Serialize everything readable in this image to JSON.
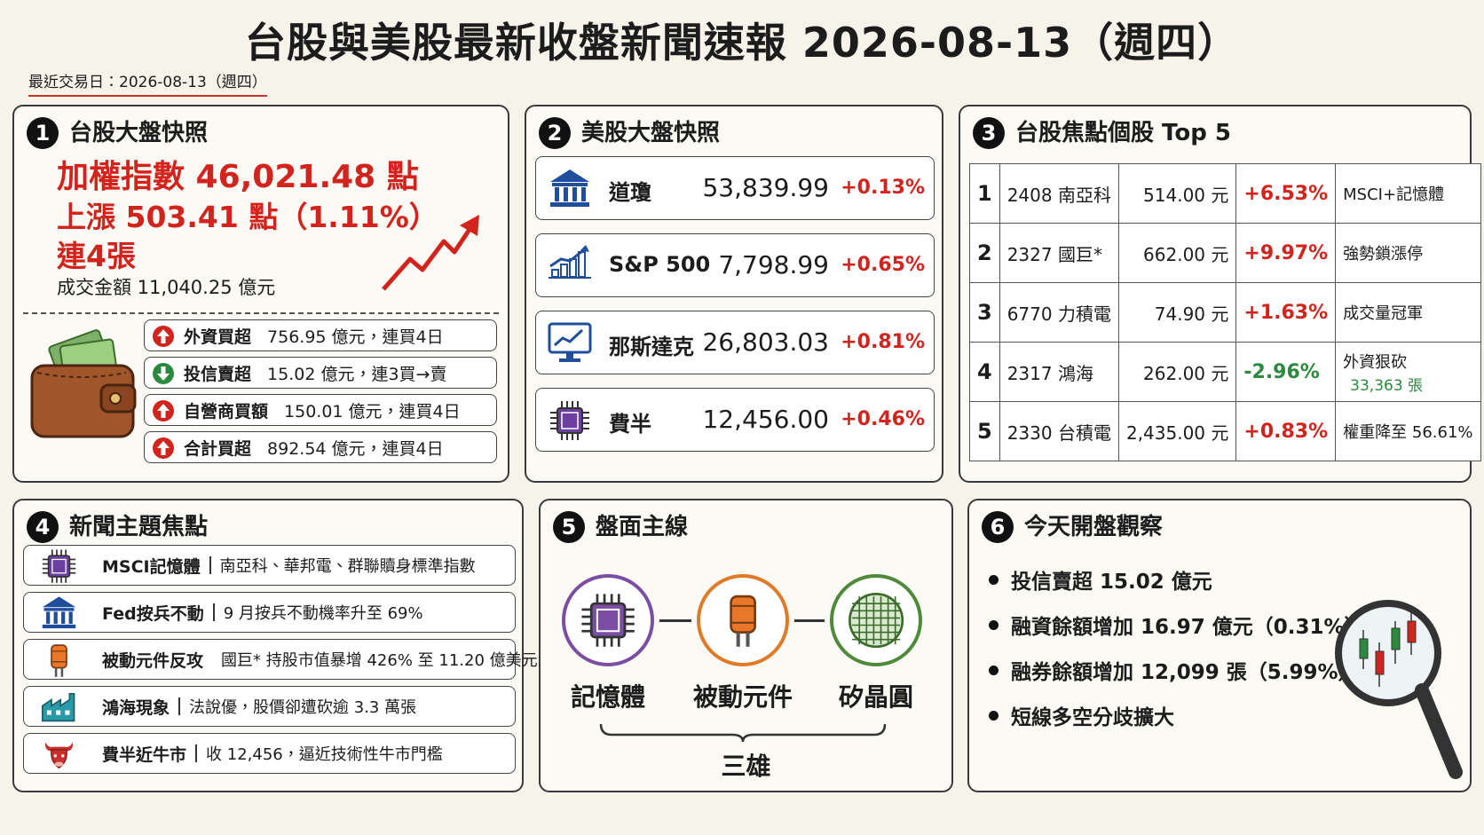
{
  "header": {
    "title": "台股與美股最新收盤新聞速報 2026-08-13（週四）",
    "subtitle": "最近交易日：2026-08-13（週四）"
  },
  "tw_snapshot": {
    "number": "1",
    "title": "台股大盤快照",
    "index_line": "加權指數 46,021.48 點",
    "change_line": "上漲 503.41 點（1.11%）",
    "streak": "連4張",
    "turnover": "成交金額 11,040.25 億元",
    "flows": [
      {
        "label": "外資買超",
        "detail": "756.95 億元，連買4日",
        "direction": "up"
      },
      {
        "label": "投信賣超",
        "detail": "15.02 億元，連3買→賣",
        "direction": "down"
      },
      {
        "label": "自營商買額",
        "detail": "150.01 億元，連買4日",
        "direction": "up"
      },
      {
        "label": "合計買超",
        "detail": "892.54 億元，連買4日",
        "direction": "up"
      }
    ]
  },
  "us_snapshot": {
    "number": "2",
    "title": "美股大盤快照",
    "rows": [
      {
        "name": "道瓊",
        "value": "53,839.99",
        "change": "+0.13%",
        "icon": "bank"
      },
      {
        "name": "S&P 500",
        "value": "7,798.99",
        "change": "+0.65%",
        "icon": "growth"
      },
      {
        "name": "那斯達克",
        "value": "26,803.03",
        "change": "+0.81%",
        "icon": "monitor"
      },
      {
        "name": "費半",
        "value": "12,456.00",
        "change": "+0.46%",
        "icon": "chip"
      }
    ]
  },
  "top_stocks": {
    "number": "3",
    "title": "台股焦點個股 Top 5",
    "rows": [
      {
        "rank": "1",
        "stock": "2408 南亞科",
        "price": "514.00 元",
        "change": "+6.53%",
        "note": "MSCI+記憶體"
      },
      {
        "rank": "2",
        "stock": "2327 國巨*",
        "price": "662.00 元",
        "change": "+9.97%",
        "note": "強勢鎖漲停"
      },
      {
        "rank": "3",
        "stock": "6770 力積電",
        "price": "74.90 元",
        "change": "+1.63%",
        "note": "成交量冠軍"
      },
      {
        "rank": "4",
        "stock": "2317 鴻海",
        "price": "262.00 元",
        "change": "-2.96%",
        "note": "外資狠砍",
        "note_sub": "33,363 張"
      },
      {
        "rank": "5",
        "stock": "2330 台積電",
        "price": "2,435.00 元",
        "change": "+0.83%",
        "note": "權重降至 56.61%"
      }
    ]
  },
  "news_topics": {
    "number": "4",
    "title": "新聞主題焦點",
    "items": [
      {
        "topic": "MSCI記憶體",
        "detail": "南亞科、華邦電、群聯贖身標準指數",
        "icon": "chip"
      },
      {
        "topic": "Fed按兵不動",
        "detail": "9 月按兵不動機率升至 69%",
        "icon": "bank"
      },
      {
        "topic": "被動元件反攻",
        "detail": "國巨* 持股市值暴增 426% 至 11.20 億美元",
        "icon": "capacitor"
      },
      {
        "topic": "鴻海現象",
        "detail": "法說優，股價卻遭砍逾 3.3 萬張",
        "icon": "factory"
      },
      {
        "topic": "費半近牛市",
        "detail": "收 12,456，逼近技術性牛市門檻",
        "icon": "bull"
      }
    ]
  },
  "main_themes": {
    "number": "5",
    "title": "盤面主線",
    "items": [
      {
        "label": "記憶體",
        "color": "#7b4ea3",
        "icon": "chip"
      },
      {
        "label": "被動元件",
        "color": "#e07a26",
        "icon": "capacitor"
      },
      {
        "label": "矽晶圓",
        "color": "#4f8a3a",
        "icon": "wafer"
      }
    ],
    "group_label": "三雄"
  },
  "open_watch": {
    "number": "6",
    "title": "今天開盤觀察",
    "bullets": [
      "投信賣超 15.02 億元",
      "融資餘額增加 16.97 億元（0.31%）",
      "融券餘額增加 12,099 張（5.99%）",
      "短線多空分歧擴大"
    ]
  }
}
